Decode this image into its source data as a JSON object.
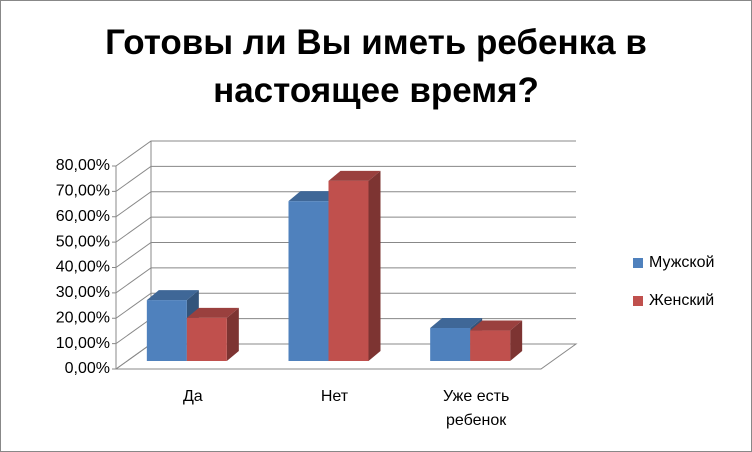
{
  "chart_data": {
    "type": "bar3d",
    "title": "Готовы ли Вы иметь ребенка в настоящее время?",
    "categories": [
      "Да",
      "Нет",
      "Уже есть ребенок"
    ],
    "series": [
      {
        "name": "Мужской",
        "color": "#4f81bd",
        "values": [
          24,
          63,
          13
        ]
      },
      {
        "name": "Женский",
        "color": "#c0504d",
        "values": [
          17,
          71,
          12
        ]
      }
    ],
    "ylim": [
      0,
      80
    ],
    "yticks": [
      {
        "value": 0,
        "label": "0,00%"
      },
      {
        "value": 10,
        "label": "10,00%"
      },
      {
        "value": 20,
        "label": "20,00%"
      },
      {
        "value": 30,
        "label": "30,00%"
      },
      {
        "value": 40,
        "label": "40,00%"
      },
      {
        "value": 50,
        "label": "50,00%"
      },
      {
        "value": 60,
        "label": "60,00%"
      },
      {
        "value": 70,
        "label": "70,00%"
      },
      {
        "value": 80,
        "label": "80,00%"
      }
    ],
    "grid": true
  }
}
